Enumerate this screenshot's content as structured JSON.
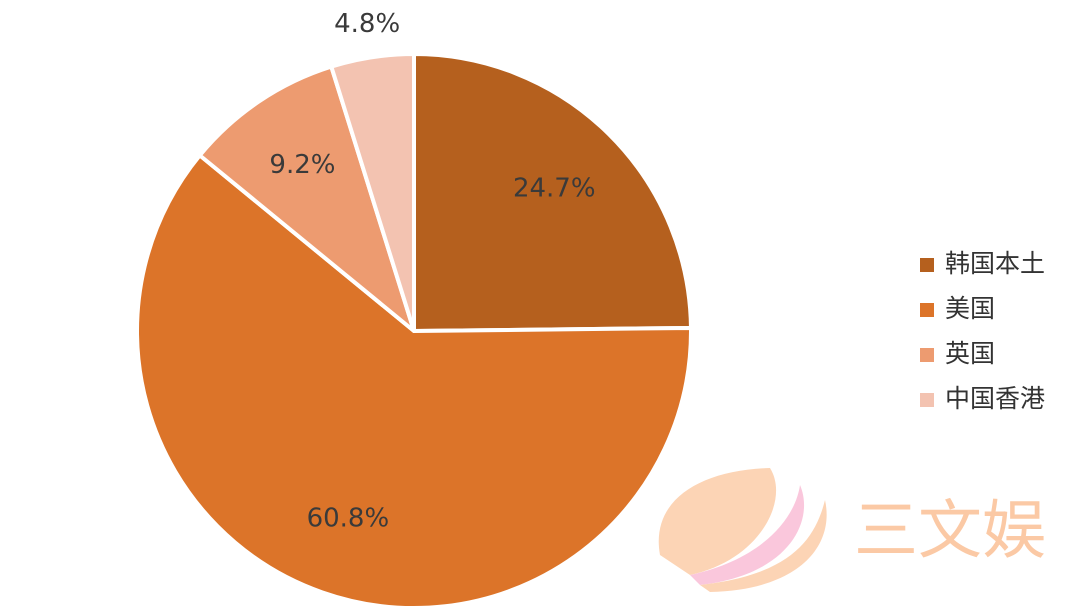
{
  "chart_data": {
    "type": "pie",
    "categories": [
      "韩国本土",
      "美国",
      "英国",
      "中国香港"
    ],
    "values": [
      24.7,
      60.8,
      9.2,
      4.8
    ],
    "value_labels": [
      "24.7%",
      "60.8%",
      "9.2%",
      "4.8%"
    ],
    "colors": [
      "#b5601e",
      "#dc7429",
      "#ed9b70",
      "#f3c3b1"
    ],
    "legend": "right"
  },
  "watermark": "三文娱"
}
